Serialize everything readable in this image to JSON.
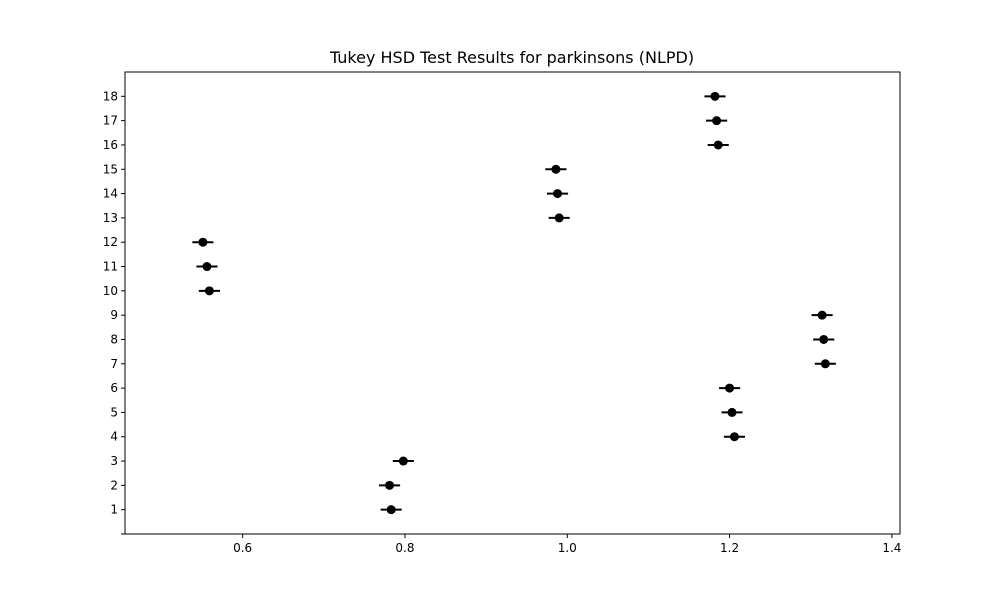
{
  "chart_data": {
    "type": "scatter",
    "title": "Tukey HSD Test Results for parkinsons (NLPD)",
    "xlabel": "",
    "ylabel": "",
    "xlim": [
      0.455,
      1.41
    ],
    "ylim": [
      0,
      19
    ],
    "x_ticks": [
      {
        "value": 0.6,
        "label": "0.6"
      },
      {
        "value": 0.8,
        "label": "0.8"
      },
      {
        "value": 1.0,
        "label": "1.0"
      },
      {
        "value": 1.2,
        "label": "1.2"
      },
      {
        "value": 1.4,
        "label": "1.4"
      }
    ],
    "y_ticks": [
      {
        "value": 0,
        "label": ""
      },
      {
        "value": 1,
        "label": "1"
      },
      {
        "value": 2,
        "label": "2"
      },
      {
        "value": 3,
        "label": "3"
      },
      {
        "value": 4,
        "label": "4"
      },
      {
        "value": 5,
        "label": "5"
      },
      {
        "value": 6,
        "label": "6"
      },
      {
        "value": 7,
        "label": "7"
      },
      {
        "value": 8,
        "label": "8"
      },
      {
        "value": 9,
        "label": "9"
      },
      {
        "value": 10,
        "label": "10"
      },
      {
        "value": 11,
        "label": "11"
      },
      {
        "value": 12,
        "label": "12"
      },
      {
        "value": 13,
        "label": "13"
      },
      {
        "value": 14,
        "label": "14"
      },
      {
        "value": 15,
        "label": "15"
      },
      {
        "value": 16,
        "label": "16"
      },
      {
        "value": 17,
        "label": "17"
      },
      {
        "value": 18,
        "label": "18"
      }
    ],
    "grid": false,
    "point_color": "#000000",
    "points": [
      {
        "group": 1,
        "mean": 0.783,
        "lower": 0.77,
        "upper": 0.796
      },
      {
        "group": 2,
        "mean": 0.781,
        "lower": 0.768,
        "upper": 0.794
      },
      {
        "group": 3,
        "mean": 0.798,
        "lower": 0.785,
        "upper": 0.811
      },
      {
        "group": 4,
        "mean": 1.206,
        "lower": 1.193,
        "upper": 1.219
      },
      {
        "group": 5,
        "mean": 1.203,
        "lower": 1.19,
        "upper": 1.216
      },
      {
        "group": 6,
        "mean": 1.2,
        "lower": 1.187,
        "upper": 1.213
      },
      {
        "group": 7,
        "mean": 1.318,
        "lower": 1.305,
        "upper": 1.331
      },
      {
        "group": 8,
        "mean": 1.316,
        "lower": 1.303,
        "upper": 1.329
      },
      {
        "group": 9,
        "mean": 1.314,
        "lower": 1.301,
        "upper": 1.327
      },
      {
        "group": 10,
        "mean": 0.559,
        "lower": 0.546,
        "upper": 0.572
      },
      {
        "group": 11,
        "mean": 0.556,
        "lower": 0.543,
        "upper": 0.569
      },
      {
        "group": 12,
        "mean": 0.551,
        "lower": 0.538,
        "upper": 0.564
      },
      {
        "group": 13,
        "mean": 0.99,
        "lower": 0.977,
        "upper": 1.003
      },
      {
        "group": 14,
        "mean": 0.988,
        "lower": 0.975,
        "upper": 1.001
      },
      {
        "group": 15,
        "mean": 0.986,
        "lower": 0.973,
        "upper": 0.999
      },
      {
        "group": 16,
        "mean": 1.186,
        "lower": 1.173,
        "upper": 1.199
      },
      {
        "group": 17,
        "mean": 1.184,
        "lower": 1.171,
        "upper": 1.197
      },
      {
        "group": 18,
        "mean": 1.182,
        "lower": 1.169,
        "upper": 1.195
      }
    ]
  }
}
